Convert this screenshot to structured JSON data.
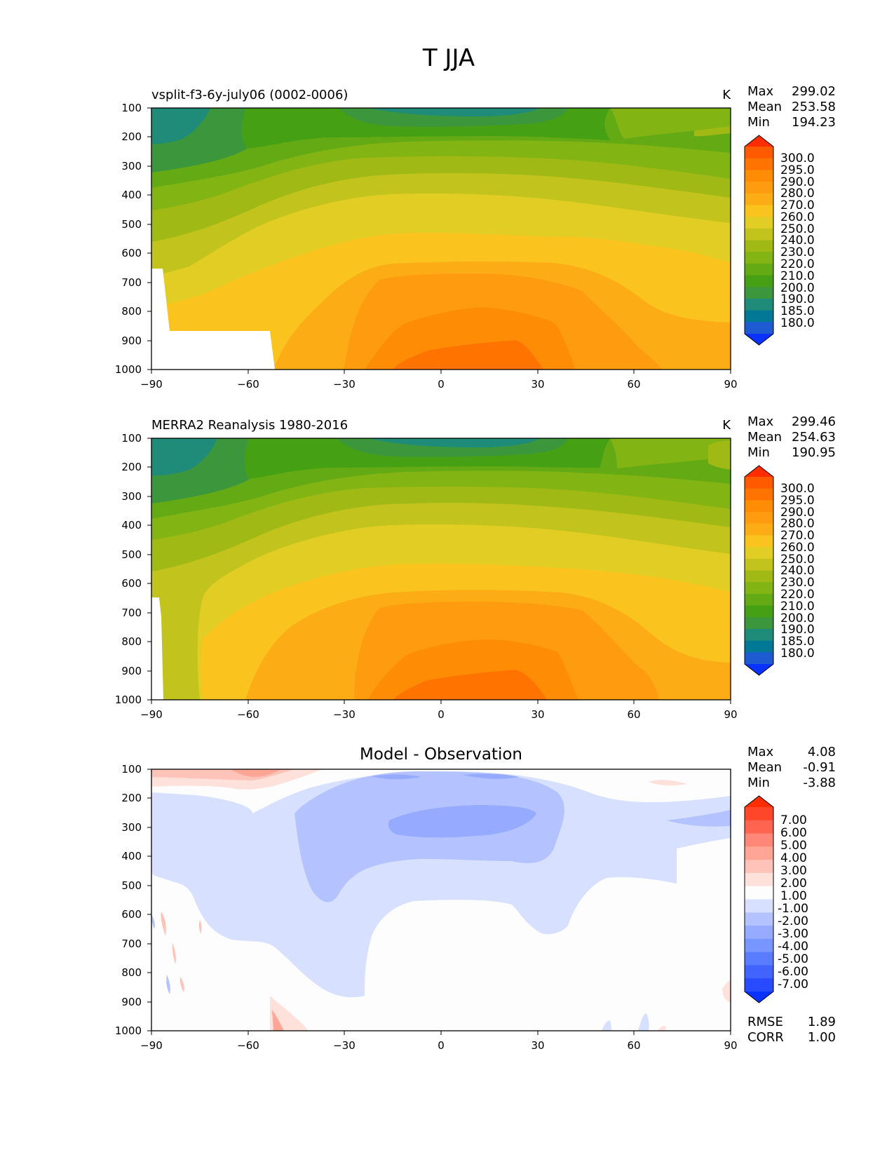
{
  "figure_title": "T JJA",
  "colors": {
    "abs_levels": [
      "#0a32ff",
      "#1e5ad2",
      "#007896",
      "#1e8c78",
      "#3c963c",
      "#46a014",
      "#64aa14",
      "#82b414",
      "#a0b914",
      "#c3c31e",
      "#e1cd23",
      "#fac31e",
      "#fcad16",
      "#ff9b0f",
      "#ff8c05",
      "#ff7300",
      "#ff5a00",
      "#ff2d00"
    ],
    "diff_levels": [
      "#0a32ff",
      "#284bff",
      "#4164ff",
      "#5a7dff",
      "#7896ff",
      "#96aaff",
      "#b4c3ff",
      "#d7e1ff",
      "#fdfdfd",
      "#ffe1dc",
      "#ffc3b9",
      "#ffa596",
      "#ff8778",
      "#ff6450",
      "#ff4628",
      "#ff2d00"
    ]
  },
  "chart_data": [
    {
      "type": "heatmap",
      "title": "vsplit-f3-6y-july06 (0002-0006)",
      "units": "K",
      "stats": [
        {
          "label": "Max",
          "value": "299.02"
        },
        {
          "label": "Mean",
          "value": "253.58"
        },
        {
          "label": "Min",
          "value": "194.23"
        }
      ],
      "x_ticks": [
        "−90",
        "−60",
        "−30",
        "0",
        "30",
        "60",
        "90"
      ],
      "y_ticks": [
        "100",
        "200",
        "300",
        "400",
        "500",
        "600",
        "700",
        "800",
        "900",
        "1000"
      ],
      "xlim": [
        -90,
        90
      ],
      "ylim": [
        1000,
        100
      ],
      "colorbar_labels": [
        "300.0",
        "295.0",
        "290.0",
        "280.0",
        "270.0",
        "260.0",
        "250.0",
        "240.0",
        "230.0",
        "220.0",
        "210.0",
        "200.0",
        "190.0",
        "185.0",
        "180.0"
      ]
    },
    {
      "type": "heatmap",
      "title": "MERRA2 Reanalysis 1980-2016",
      "units": "K",
      "stats": [
        {
          "label": "Max",
          "value": "299.46"
        },
        {
          "label": "Mean",
          "value": "254.63"
        },
        {
          "label": "Min",
          "value": "190.95"
        }
      ],
      "x_ticks": [
        "−90",
        "−60",
        "−30",
        "0",
        "30",
        "60",
        "90"
      ],
      "y_ticks": [
        "100",
        "200",
        "300",
        "400",
        "500",
        "600",
        "700",
        "800",
        "900",
        "1000"
      ],
      "xlim": [
        -90,
        90
      ],
      "ylim": [
        1000,
        100
      ],
      "colorbar_labels": [
        "300.0",
        "295.0",
        "290.0",
        "280.0",
        "270.0",
        "260.0",
        "250.0",
        "240.0",
        "230.0",
        "220.0",
        "210.0",
        "200.0",
        "190.0",
        "185.0",
        "180.0"
      ]
    },
    {
      "type": "heatmap",
      "title": "Model - Observation",
      "units": "",
      "stats": [
        {
          "label": "Max",
          "value": "4.08"
        },
        {
          "label": "Mean",
          "value": "-0.91"
        },
        {
          "label": "Min",
          "value": "-3.88"
        }
      ],
      "x_ticks": [
        "−90",
        "−60",
        "−30",
        "0",
        "30",
        "60",
        "90"
      ],
      "y_ticks": [
        "100",
        "200",
        "300",
        "400",
        "500",
        "600",
        "700",
        "800",
        "900",
        "1000"
      ],
      "xlim": [
        -90,
        90
      ],
      "ylim": [
        1000,
        100
      ],
      "colorbar_labels": [
        "7.00",
        "6.00",
        "5.00",
        "4.00",
        "3.00",
        "2.00",
        "1.00",
        "-1.00",
        "-2.00",
        "-3.00",
        "-4.00",
        "-5.00",
        "-6.00",
        "-7.00"
      ],
      "extra_stats": [
        {
          "label": "RMSE",
          "value": "1.89"
        },
        {
          "label": "CORR",
          "value": "1.00"
        }
      ]
    }
  ]
}
